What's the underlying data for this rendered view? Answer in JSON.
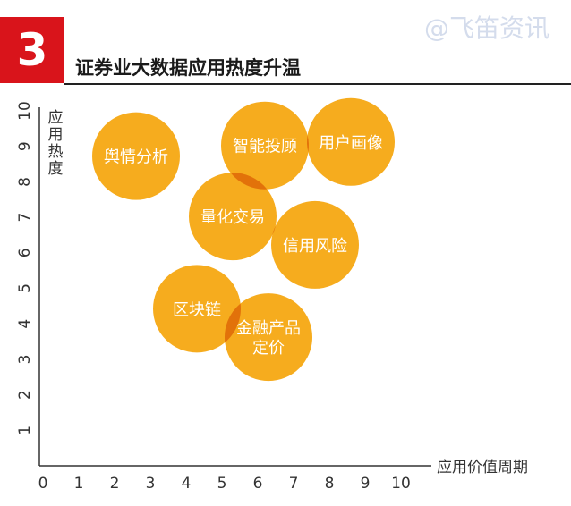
{
  "watermark": "@飞笛资讯",
  "section": {
    "number": "3",
    "title": "证券业大数据应用热度升温"
  },
  "colors": {
    "bubble": "#f6ac1e",
    "overlap": "#e2720a",
    "badge": "#d9141b",
    "axis": "#333333"
  },
  "chart_data": {
    "type": "scatter",
    "title": "证券业大数据应用热度升温",
    "xlabel": "应用价值周期",
    "ylabel": "应用热度",
    "xlim": [
      0,
      10
    ],
    "ylim": [
      0,
      10
    ],
    "x_ticks": [
      "0",
      "1",
      "2",
      "3",
      "4",
      "5",
      "6",
      "7",
      "8",
      "9",
      "10"
    ],
    "y_ticks": [
      "1",
      "2",
      "3",
      "4",
      "5",
      "6",
      "7",
      "8",
      "9",
      "10"
    ],
    "grid": false,
    "points": [
      {
        "label": [
          "舆情分析"
        ],
        "x": 2.6,
        "y": 8.8
      },
      {
        "label": [
          "智能投顾"
        ],
        "x": 6.2,
        "y": 9.1
      },
      {
        "label": [
          "用户画像"
        ],
        "x": 8.6,
        "y": 9.2
      },
      {
        "label": [
          "量化交易"
        ],
        "x": 5.3,
        "y": 7.1
      },
      {
        "label": [
          "信用风险"
        ],
        "x": 7.6,
        "y": 6.3
      },
      {
        "label": [
          "区块链"
        ],
        "x": 4.3,
        "y": 4.5
      },
      {
        "label": [
          "金融产品",
          "定价"
        ],
        "x": 6.3,
        "y": 3.7
      }
    ]
  }
}
